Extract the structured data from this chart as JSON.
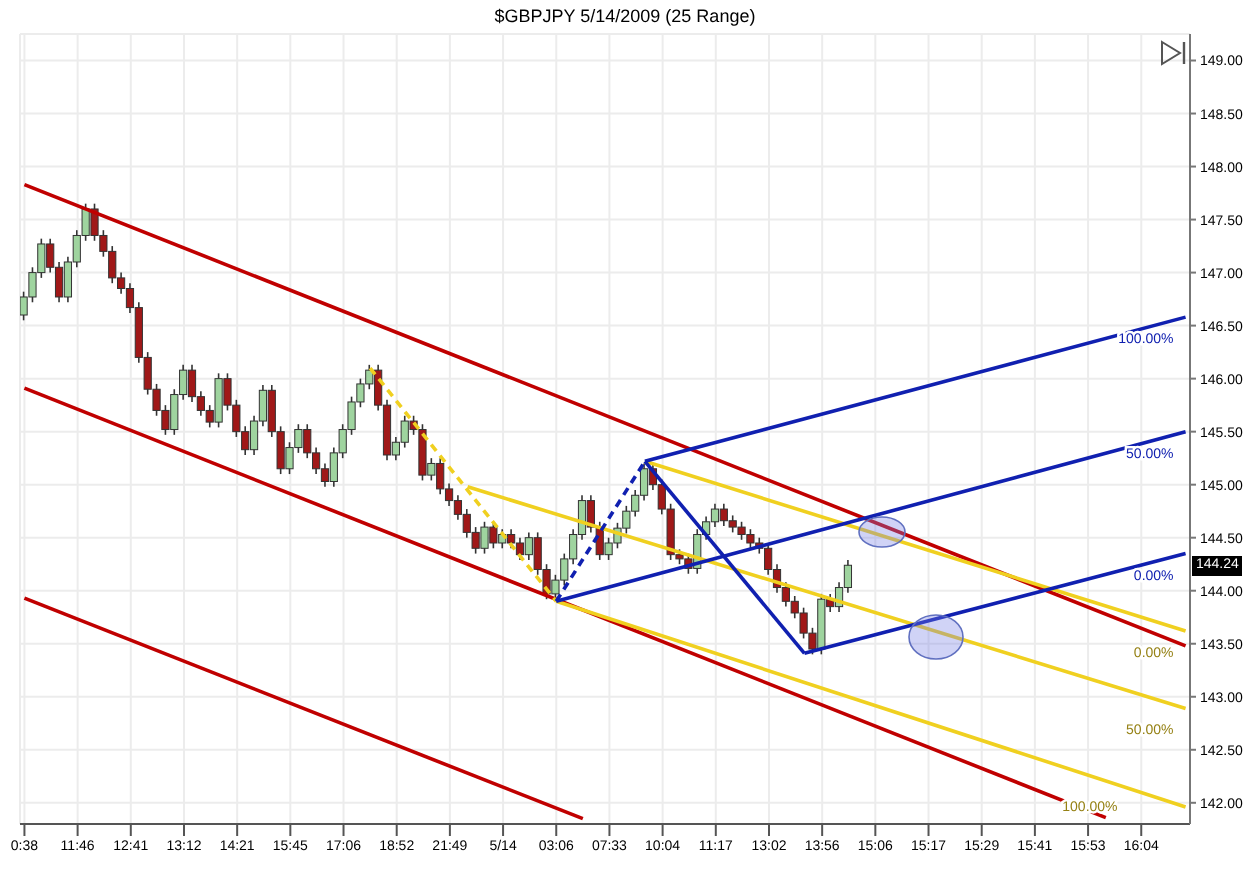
{
  "chart_data": {
    "type": "candlestick",
    "title": "$GBPJPY  5/14/2009 (25 Range)",
    "categories": [
      "0:38",
      null,
      null,
      null,
      null,
      null,
      "11:46",
      null,
      null,
      null,
      null,
      null,
      "12:41",
      null,
      null,
      null,
      null,
      null,
      "13:12",
      null,
      null,
      null,
      null,
      null,
      "14:21",
      null,
      null,
      null,
      null,
      null,
      "15:45",
      null,
      null,
      null,
      null,
      null,
      "17:06",
      null,
      null,
      null,
      null,
      null,
      "18:52",
      null,
      null,
      null,
      null,
      null,
      "21:49",
      null,
      null,
      null,
      null,
      null,
      "5/14",
      null,
      null,
      null,
      null,
      null,
      "03:06",
      null,
      null,
      null,
      null,
      null,
      "07:33",
      null,
      null,
      null,
      null,
      null,
      "10:04",
      null,
      null,
      null,
      null,
      null,
      "11:17",
      null,
      null,
      null,
      null,
      null,
      "13:02",
      null,
      null,
      null,
      null,
      null,
      "13:56",
      null,
      null,
      null,
      null,
      null,
      "15:06",
      null,
      null,
      null,
      null,
      null,
      "15:17",
      null,
      null,
      null,
      null,
      null,
      "15:29",
      null,
      null,
      null,
      null,
      null,
      "15:41",
      null,
      null,
      null,
      null,
      null,
      "15:53",
      null,
      null,
      null,
      null,
      null,
      "16:04",
      null,
      null,
      null,
      null,
      null
    ],
    "ohlc": [
      [
        146.6,
        146.82,
        146.55,
        146.77
      ],
      [
        146.77,
        147.05,
        146.72,
        147.0
      ],
      [
        147.0,
        147.32,
        146.95,
        147.27
      ],
      [
        147.27,
        147.32,
        147.0,
        147.05
      ],
      [
        147.05,
        147.1,
        146.72,
        146.77
      ],
      [
        146.77,
        147.15,
        146.72,
        147.1
      ],
      [
        147.1,
        147.4,
        147.05,
        147.35
      ],
      [
        147.35,
        147.65,
        147.3,
        147.6
      ],
      [
        147.6,
        147.65,
        147.3,
        147.35
      ],
      [
        147.35,
        147.4,
        147.15,
        147.2
      ],
      [
        147.2,
        147.25,
        146.9,
        146.95
      ],
      [
        146.95,
        147.0,
        146.8,
        146.85
      ],
      [
        146.85,
        146.9,
        146.62,
        146.67
      ],
      [
        146.67,
        146.72,
        146.15,
        146.2
      ],
      [
        146.2,
        146.25,
        145.85,
        145.9
      ],
      [
        145.9,
        145.95,
        145.65,
        145.7
      ],
      [
        145.7,
        145.75,
        145.47,
        145.52
      ],
      [
        145.52,
        145.9,
        145.47,
        145.85
      ],
      [
        145.85,
        146.13,
        145.8,
        146.08
      ],
      [
        146.08,
        146.13,
        145.78,
        145.83
      ],
      [
        145.83,
        145.88,
        145.65,
        145.7
      ],
      [
        145.7,
        145.75,
        145.54,
        145.59
      ],
      [
        145.59,
        146.05,
        145.54,
        146.0
      ],
      [
        146.0,
        146.05,
        145.7,
        145.75
      ],
      [
        145.75,
        145.8,
        145.45,
        145.5
      ],
      [
        145.5,
        145.55,
        145.28,
        145.33
      ],
      [
        145.33,
        145.65,
        145.28,
        145.6
      ],
      [
        145.6,
        145.94,
        145.55,
        145.89
      ],
      [
        145.89,
        145.94,
        145.45,
        145.5
      ],
      [
        145.5,
        145.55,
        145.1,
        145.15
      ],
      [
        145.15,
        145.4,
        145.1,
        145.35
      ],
      [
        145.35,
        145.57,
        145.3,
        145.52
      ],
      [
        145.52,
        145.57,
        145.25,
        145.3
      ],
      [
        145.3,
        145.35,
        145.1,
        145.15
      ],
      [
        145.15,
        145.2,
        144.98,
        145.03
      ],
      [
        145.03,
        145.35,
        144.98,
        145.3
      ],
      [
        145.3,
        145.57,
        145.25,
        145.52
      ],
      [
        145.52,
        145.83,
        145.47,
        145.78
      ],
      [
        145.78,
        146.0,
        145.73,
        145.95
      ],
      [
        145.95,
        146.13,
        145.9,
        146.08
      ],
      [
        146.08,
        146.13,
        145.7,
        145.75
      ],
      [
        145.75,
        145.8,
        145.23,
        145.28
      ],
      [
        145.28,
        145.45,
        145.23,
        145.4
      ],
      [
        145.4,
        145.65,
        145.35,
        145.6
      ],
      [
        145.6,
        145.65,
        145.47,
        145.52
      ],
      [
        145.52,
        145.57,
        145.04,
        145.09
      ],
      [
        145.09,
        145.25,
        145.04,
        145.2
      ],
      [
        145.2,
        145.25,
        144.91,
        144.96
      ],
      [
        144.96,
        145.01,
        144.8,
        144.85
      ],
      [
        144.85,
        144.9,
        144.67,
        144.72
      ],
      [
        144.72,
        144.77,
        144.5,
        144.55
      ],
      [
        144.55,
        144.6,
        144.35,
        144.4
      ],
      [
        144.4,
        144.65,
        144.35,
        144.6
      ],
      [
        144.6,
        144.65,
        144.4,
        144.45
      ],
      [
        144.45,
        144.58,
        144.4,
        144.53
      ],
      [
        144.53,
        144.58,
        144.4,
        144.45
      ],
      [
        144.45,
        144.5,
        144.29,
        144.34
      ],
      [
        144.34,
        144.55,
        144.29,
        144.5
      ],
      [
        144.5,
        144.55,
        144.15,
        144.2
      ],
      [
        144.2,
        144.25,
        143.92,
        143.97
      ],
      [
        143.97,
        144.15,
        143.92,
        144.1
      ],
      [
        144.1,
        144.35,
        144.05,
        144.3
      ],
      [
        144.3,
        144.58,
        144.25,
        144.53
      ],
      [
        144.53,
        144.9,
        144.48,
        144.85
      ],
      [
        144.85,
        144.9,
        144.55,
        144.6
      ],
      [
        144.6,
        144.65,
        144.29,
        144.34
      ],
      [
        144.34,
        144.5,
        144.29,
        144.45
      ],
      [
        144.45,
        144.64,
        144.4,
        144.59
      ],
      [
        144.59,
        144.8,
        144.54,
        144.75
      ],
      [
        144.75,
        144.95,
        144.7,
        144.9
      ],
      [
        144.9,
        145.2,
        144.85,
        145.15
      ],
      [
        145.15,
        145.2,
        144.95,
        145.0
      ],
      [
        145.0,
        145.05,
        144.72,
        144.77
      ],
      [
        144.77,
        144.82,
        144.29,
        144.34
      ],
      [
        144.34,
        144.39,
        144.25,
        144.3
      ],
      [
        144.3,
        144.35,
        144.16,
        144.21
      ],
      [
        144.21,
        144.58,
        144.16,
        144.53
      ],
      [
        144.53,
        144.7,
        144.48,
        144.65
      ],
      [
        144.65,
        144.82,
        144.6,
        144.77
      ],
      [
        144.77,
        144.82,
        144.61,
        144.66
      ],
      [
        144.66,
        144.71,
        144.55,
        144.6
      ],
      [
        144.6,
        144.65,
        144.48,
        144.53
      ],
      [
        144.53,
        144.58,
        144.4,
        144.45
      ],
      [
        144.45,
        144.5,
        144.35,
        144.4
      ],
      [
        144.4,
        144.45,
        144.15,
        144.2
      ],
      [
        144.2,
        144.25,
        143.98,
        144.03
      ],
      [
        144.03,
        144.08,
        143.85,
        143.9
      ],
      [
        143.9,
        143.95,
        143.74,
        143.79
      ],
      [
        143.79,
        143.84,
        143.55,
        143.6
      ],
      [
        143.6,
        143.65,
        143.4,
        143.45
      ],
      [
        143.45,
        143.97,
        143.4,
        143.92
      ],
      [
        143.92,
        143.97,
        143.8,
        143.85
      ],
      [
        143.85,
        144.08,
        143.8,
        144.03
      ],
      [
        144.03,
        144.29,
        143.98,
        144.24
      ],
      null,
      null,
      null,
      null,
      null,
      null,
      null,
      null,
      null,
      null,
      null,
      null,
      null,
      null,
      null,
      null,
      null,
      null,
      null,
      null,
      null,
      null,
      null,
      null,
      null,
      null,
      null,
      null,
      null,
      null,
      null,
      null,
      null,
      null,
      null,
      null,
      null,
      null
    ],
    "series": [
      {
        "type": "line",
        "color": "#c00000",
        "values": [
          147.83,
          null,
          null,
          null,
          null,
          null,
          null,
          null,
          null,
          null,
          null,
          null,
          null,
          null,
          null,
          null,
          null,
          null,
          null,
          null,
          null,
          null,
          null,
          null,
          null,
          null,
          null,
          null,
          null,
          null,
          null,
          null,
          null,
          null,
          null,
          null,
          null,
          null,
          null,
          null,
          null,
          null,
          null,
          null,
          null,
          null,
          null,
          null,
          null,
          null,
          null,
          null,
          null,
          null,
          null,
          null,
          null,
          null,
          null,
          null,
          null,
          null,
          null,
          null,
          null,
          null,
          null,
          null,
          null,
          null,
          null,
          null,
          null,
          null,
          null,
          null,
          null,
          null,
          null,
          null,
          null,
          null,
          null,
          null,
          null,
          null,
          null,
          null,
          null,
          null,
          null,
          null,
          null,
          null,
          null,
          null,
          null,
          null,
          null,
          null,
          null,
          null,
          null,
          null,
          null,
          null,
          null,
          null,
          null,
          null,
          null,
          null,
          null,
          null,
          null,
          null,
          null,
          null,
          null,
          null,
          null,
          null,
          null,
          null,
          null,
          null,
          null,
          null,
          null,
          null,
          null,
          143.48
        ]
      },
      {
        "type": "line",
        "color": "#c00000",
        "values": [
          145.91,
          null,
          null,
          null,
          null,
          null,
          null,
          null,
          null,
          null,
          null,
          null,
          null,
          null,
          null,
          null,
          null,
          null,
          null,
          null,
          null,
          null,
          null,
          null,
          null,
          null,
          null,
          null,
          null,
          null,
          null,
          null,
          null,
          null,
          null,
          null,
          null,
          null,
          null,
          null,
          null,
          null,
          null,
          null,
          null,
          null,
          null,
          null,
          null,
          null,
          null,
          null,
          null,
          null,
          null,
          null,
          null,
          null,
          null,
          null,
          null,
          null,
          null,
          null,
          null,
          null,
          null,
          null,
          null,
          null,
          null,
          null,
          null,
          null,
          null,
          null,
          null,
          null,
          null,
          null,
          null,
          null,
          null,
          null,
          null,
          null,
          null,
          null,
          null,
          null,
          null,
          null,
          null,
          null,
          null,
          null,
          null,
          null,
          null,
          null,
          null,
          null,
          null,
          null,
          null,
          null,
          null,
          null,
          null,
          null,
          null,
          null,
          null,
          null,
          null,
          null,
          null,
          null,
          null,
          null,
          null,
          null,
          141.86,
          null,
          null,
          null,
          null,
          null,
          null,
          null,
          null,
          null
        ]
      },
      {
        "type": "line",
        "color": "#c00000",
        "values": [
          143.93,
          null,
          null,
          null,
          null,
          null,
          null,
          null,
          null,
          null,
          null,
          null,
          null,
          null,
          null,
          null,
          null,
          null,
          null,
          null,
          null,
          null,
          null,
          null,
          null,
          null,
          null,
          null,
          null,
          null,
          null,
          null,
          null,
          null,
          null,
          null,
          null,
          null,
          null,
          null,
          null,
          null,
          null,
          null,
          null,
          null,
          null,
          null,
          null,
          null,
          null,
          null,
          null,
          null,
          null,
          null,
          null,
          null,
          null,
          null,
          null,
          null,
          null,
          141.85,
          null,
          null,
          null,
          null,
          null,
          null,
          null,
          null,
          null,
          null,
          null,
          null,
          null,
          null,
          null,
          null,
          null,
          null,
          null,
          null,
          null,
          null,
          null,
          null,
          null,
          null,
          null,
          null,
          null,
          null,
          null,
          null,
          null,
          null,
          null,
          null,
          null,
          null,
          null,
          null,
          null,
          null,
          null,
          null,
          null,
          null,
          null,
          null,
          null,
          null,
          null,
          null,
          null,
          null,
          null,
          null,
          null,
          null,
          null,
          null,
          null,
          null,
          null,
          null,
          null,
          null,
          null,
          null
        ]
      },
      {
        "type": "line",
        "color": "#f0d020",
        "line_style": "dashed",
        "values": [
          null,
          null,
          null,
          null,
          null,
          null,
          null,
          null,
          null,
          null,
          null,
          null,
          null,
          null,
          null,
          null,
          null,
          null,
          null,
          null,
          null,
          null,
          null,
          null,
          null,
          null,
          null,
          null,
          null,
          null,
          null,
          null,
          null,
          null,
          null,
          null,
          null,
          null,
          null,
          146.1,
          null,
          null,
          null,
          null,
          null,
          null,
          null,
          null,
          null,
          null,
          null,
          null,
          null,
          null,
          null,
          null,
          null,
          null,
          null,
          null,
          143.9,
          null,
          null,
          null,
          null,
          null,
          null,
          null,
          null,
          null,
          null,
          null,
          null,
          null,
          null,
          null,
          null,
          null,
          null,
          null,
          null,
          null,
          null,
          null,
          null,
          null,
          null,
          null,
          null,
          null,
          null,
          null,
          null,
          null,
          null,
          null,
          null,
          null,
          null,
          null,
          null,
          null,
          null,
          null,
          null,
          null,
          null,
          null,
          null,
          null,
          null,
          null,
          null,
          null,
          null,
          null,
          null,
          null,
          null,
          null,
          null,
          null,
          null,
          null,
          null,
          null,
          null,
          null,
          null,
          null,
          null,
          null
        ]
      },
      {
        "type": "line",
        "name": "0.00%",
        "color": "#f0d020",
        "values": [
          null,
          null,
          null,
          null,
          null,
          null,
          null,
          null,
          null,
          null,
          null,
          null,
          null,
          null,
          null,
          null,
          null,
          null,
          null,
          null,
          null,
          null,
          null,
          null,
          null,
          null,
          null,
          null,
          null,
          null,
          null,
          null,
          null,
          null,
          null,
          null,
          null,
          null,
          null,
          null,
          null,
          null,
          null,
          null,
          null,
          null,
          null,
          null,
          null,
          null,
          null,
          null,
          null,
          null,
          null,
          null,
          null,
          null,
          null,
          null,
          null,
          null,
          null,
          null,
          null,
          null,
          null,
          null,
          null,
          null,
          145.22,
          null,
          null,
          null,
          null,
          null,
          null,
          null,
          null,
          null,
          null,
          null,
          null,
          null,
          null,
          null,
          null,
          null,
          null,
          null,
          null,
          null,
          null,
          null,
          null,
          null,
          null,
          null,
          null,
          null,
          null,
          null,
          null,
          null,
          null,
          null,
          null,
          null,
          null,
          null,
          null,
          null,
          null,
          null,
          null,
          null,
          null,
          null,
          null,
          null,
          null,
          null,
          null,
          null,
          null,
          null,
          null,
          null,
          null,
          null,
          null,
          143.62
        ]
      },
      {
        "type": "line",
        "name": "50.00%",
        "color": "#f0d020",
        "values": [
          null,
          null,
          null,
          null,
          null,
          null,
          null,
          null,
          null,
          null,
          null,
          null,
          null,
          null,
          null,
          null,
          null,
          null,
          null,
          null,
          null,
          null,
          null,
          null,
          null,
          null,
          null,
          null,
          null,
          null,
          null,
          null,
          null,
          null,
          null,
          null,
          null,
          null,
          null,
          null,
          null,
          null,
          null,
          null,
          null,
          null,
          null,
          null,
          null,
          null,
          144.98,
          null,
          null,
          null,
          null,
          null,
          null,
          null,
          null,
          null,
          null,
          null,
          null,
          null,
          null,
          null,
          null,
          null,
          null,
          null,
          null,
          null,
          null,
          null,
          null,
          null,
          null,
          null,
          null,
          null,
          null,
          null,
          null,
          null,
          null,
          null,
          null,
          null,
          null,
          null,
          null,
          null,
          null,
          null,
          null,
          null,
          null,
          null,
          null,
          null,
          null,
          null,
          null,
          null,
          null,
          null,
          null,
          null,
          null,
          null,
          null,
          null,
          null,
          null,
          null,
          null,
          null,
          null,
          null,
          null,
          null,
          null,
          null,
          null,
          null,
          null,
          null,
          null,
          null,
          null,
          null,
          142.89
        ]
      },
      {
        "type": "line",
        "name": "100.00%",
        "color": "#f0d020",
        "values": [
          null,
          null,
          null,
          null,
          null,
          null,
          null,
          null,
          null,
          null,
          null,
          null,
          null,
          null,
          null,
          null,
          null,
          null,
          null,
          null,
          null,
          null,
          null,
          null,
          null,
          null,
          null,
          null,
          null,
          null,
          null,
          null,
          null,
          null,
          null,
          null,
          null,
          null,
          null,
          null,
          null,
          null,
          null,
          null,
          null,
          null,
          null,
          null,
          null,
          null,
          null,
          null,
          null,
          null,
          null,
          null,
          null,
          null,
          null,
          null,
          143.9,
          null,
          null,
          null,
          null,
          null,
          null,
          null,
          null,
          null,
          null,
          null,
          null,
          null,
          null,
          null,
          null,
          null,
          null,
          null,
          null,
          null,
          null,
          null,
          null,
          null,
          null,
          null,
          null,
          null,
          null,
          null,
          null,
          null,
          null,
          null,
          null,
          null,
          null,
          null,
          null,
          null,
          null,
          null,
          null,
          null,
          null,
          null,
          null,
          null,
          null,
          null,
          null,
          null,
          null,
          null,
          null,
          null,
          null,
          null,
          null,
          null,
          null,
          null,
          null,
          null,
          null,
          null,
          null,
          null,
          null,
          141.96
        ]
      },
      {
        "type": "line",
        "color": "#1020b0",
        "line_style": "dashed",
        "values": [
          null,
          null,
          null,
          null,
          null,
          null,
          null,
          null,
          null,
          null,
          null,
          null,
          null,
          null,
          null,
          null,
          null,
          null,
          null,
          null,
          null,
          null,
          null,
          null,
          null,
          null,
          null,
          null,
          null,
          null,
          null,
          null,
          null,
          null,
          null,
          null,
          null,
          null,
          null,
          null,
          null,
          null,
          null,
          null,
          null,
          null,
          null,
          null,
          null,
          null,
          null,
          null,
          null,
          null,
          null,
          null,
          null,
          null,
          null,
          null,
          143.9,
          null,
          null,
          null,
          null,
          null,
          null,
          null,
          null,
          null,
          145.22,
          null,
          null,
          null,
          null,
          null,
          null,
          null,
          null,
          null,
          null,
          null,
          null,
          null,
          null,
          null,
          null,
          null,
          null,
          null,
          null,
          null,
          null,
          null,
          null,
          null,
          null,
          null,
          null,
          null,
          null,
          null,
          null,
          null,
          null,
          null,
          null,
          null,
          null,
          null,
          null,
          null,
          null,
          null,
          null,
          null,
          null,
          null,
          null,
          null,
          null,
          null,
          null,
          null,
          null,
          null,
          null,
          null,
          null,
          null,
          null,
          null
        ]
      },
      {
        "type": "line",
        "color": "#1020b0",
        "values": [
          null,
          null,
          null,
          null,
          null,
          null,
          null,
          null,
          null,
          null,
          null,
          null,
          null,
          null,
          null,
          null,
          null,
          null,
          null,
          null,
          null,
          null,
          null,
          null,
          null,
          null,
          null,
          null,
          null,
          null,
          null,
          null,
          null,
          null,
          null,
          null,
          null,
          null,
          null,
          null,
          null,
          null,
          null,
          null,
          null,
          null,
          null,
          null,
          null,
          null,
          null,
          null,
          null,
          null,
          null,
          null,
          null,
          null,
          null,
          null,
          null,
          null,
          null,
          null,
          null,
          null,
          null,
          null,
          null,
          null,
          145.22,
          null,
          null,
          null,
          null,
          null,
          null,
          null,
          null,
          null,
          null,
          null,
          null,
          null,
          null,
          null,
          null,
          null,
          143.41,
          null,
          null,
          null,
          null,
          null,
          null,
          null,
          null,
          null,
          null,
          null,
          null,
          null,
          null,
          null,
          null,
          null,
          null,
          null,
          null,
          null,
          null,
          null,
          null,
          null,
          null,
          null,
          null,
          null,
          null,
          null,
          null,
          null,
          null,
          null,
          null,
          null,
          null,
          null,
          null,
          null,
          null,
          null
        ]
      },
      {
        "type": "line",
        "name": "100.00%",
        "color": "#1020b0",
        "values": [
          null,
          null,
          null,
          null,
          null,
          null,
          null,
          null,
          null,
          null,
          null,
          null,
          null,
          null,
          null,
          null,
          null,
          null,
          null,
          null,
          null,
          null,
          null,
          null,
          null,
          null,
          null,
          null,
          null,
          null,
          null,
          null,
          null,
          null,
          null,
          null,
          null,
          null,
          null,
          null,
          null,
          null,
          null,
          null,
          null,
          null,
          null,
          null,
          null,
          null,
          null,
          null,
          null,
          null,
          null,
          null,
          null,
          null,
          null,
          null,
          null,
          null,
          null,
          null,
          null,
          null,
          null,
          null,
          null,
          null,
          145.22,
          null,
          null,
          null,
          null,
          null,
          null,
          null,
          null,
          null,
          null,
          null,
          null,
          null,
          null,
          null,
          null,
          null,
          null,
          null,
          null,
          null,
          null,
          null,
          null,
          null,
          null,
          null,
          null,
          null,
          null,
          null,
          null,
          null,
          null,
          null,
          null,
          null,
          null,
          null,
          null,
          null,
          null,
          null,
          null,
          null,
          null,
          null,
          null,
          null,
          null,
          null,
          null,
          null,
          null,
          null,
          null,
          null,
          null,
          null,
          null,
          146.58
        ]
      },
      {
        "type": "line",
        "name": "50.00%",
        "color": "#1020b0",
        "values": [
          null,
          null,
          null,
          null,
          null,
          null,
          null,
          null,
          null,
          null,
          null,
          null,
          null,
          null,
          null,
          null,
          null,
          null,
          null,
          null,
          null,
          null,
          null,
          null,
          null,
          null,
          null,
          null,
          null,
          null,
          null,
          null,
          null,
          null,
          null,
          null,
          null,
          null,
          null,
          null,
          null,
          null,
          null,
          null,
          null,
          null,
          null,
          null,
          null,
          null,
          null,
          null,
          null,
          null,
          null,
          null,
          null,
          null,
          null,
          null,
          143.9,
          null,
          null,
          null,
          null,
          null,
          null,
          null,
          null,
          null,
          null,
          null,
          null,
          null,
          null,
          null,
          null,
          null,
          null,
          null,
          null,
          null,
          null,
          null,
          null,
          null,
          null,
          null,
          null,
          null,
          null,
          null,
          null,
          null,
          null,
          null,
          null,
          null,
          null,
          null,
          null,
          null,
          null,
          null,
          null,
          null,
          null,
          null,
          null,
          null,
          null,
          null,
          null,
          null,
          null,
          null,
          null,
          null,
          null,
          null,
          null,
          null,
          null,
          null,
          null,
          null,
          null,
          null,
          null,
          null,
          null,
          145.5
        ]
      },
      {
        "type": "line",
        "name": "0.00%",
        "color": "#1020b0",
        "values": [
          null,
          null,
          null,
          null,
          null,
          null,
          null,
          null,
          null,
          null,
          null,
          null,
          null,
          null,
          null,
          null,
          null,
          null,
          null,
          null,
          null,
          null,
          null,
          null,
          null,
          null,
          null,
          null,
          null,
          null,
          null,
          null,
          null,
          null,
          null,
          null,
          null,
          null,
          null,
          null,
          null,
          null,
          null,
          null,
          null,
          null,
          null,
          null,
          null,
          null,
          null,
          null,
          null,
          null,
          null,
          null,
          null,
          null,
          null,
          null,
          null,
          null,
          null,
          null,
          null,
          null,
          null,
          null,
          null,
          null,
          null,
          null,
          null,
          null,
          null,
          null,
          null,
          null,
          null,
          null,
          null,
          null,
          null,
          null,
          null,
          null,
          null,
          null,
          143.41,
          null,
          null,
          null,
          null,
          null,
          null,
          null,
          null,
          null,
          null,
          null,
          null,
          null,
          null,
          null,
          null,
          null,
          null,
          null,
          null,
          null,
          null,
          null,
          null,
          null,
          null,
          null,
          null,
          null,
          null,
          null,
          null,
          null,
          null,
          null,
          null,
          null,
          null,
          null,
          null,
          null,
          null,
          144.35
        ]
      }
    ],
    "ylim": [
      141.8,
      149.25
    ],
    "yticks": [
      {
        "value": 142,
        "label": "142.00"
      },
      {
        "value": 142.5,
        "label": "142.50"
      },
      {
        "value": 143,
        "label": "143.00"
      },
      {
        "value": 143.5,
        "label": "143.50"
      },
      {
        "value": 144,
        "label": "144.00"
      },
      {
        "value": 144.5,
        "label": "144.50"
      },
      {
        "value": 145,
        "label": "145.00"
      },
      {
        "value": 145.5,
        "label": "145.50"
      },
      {
        "value": 146,
        "label": "146.00"
      },
      {
        "value": 146.5,
        "label": "146.50"
      },
      {
        "value": 147,
        "label": "147.00"
      },
      {
        "value": 147.5,
        "label": "147.50"
      },
      {
        "value": 148,
        "label": "148.00"
      },
      {
        "value": 148.5,
        "label": "148.50"
      },
      {
        "value": 149,
        "label": "149.00"
      }
    ],
    "grid": true,
    "annotations": [
      {
        "text": "144.24",
        "y": 144.24
      }
    ]
  }
}
